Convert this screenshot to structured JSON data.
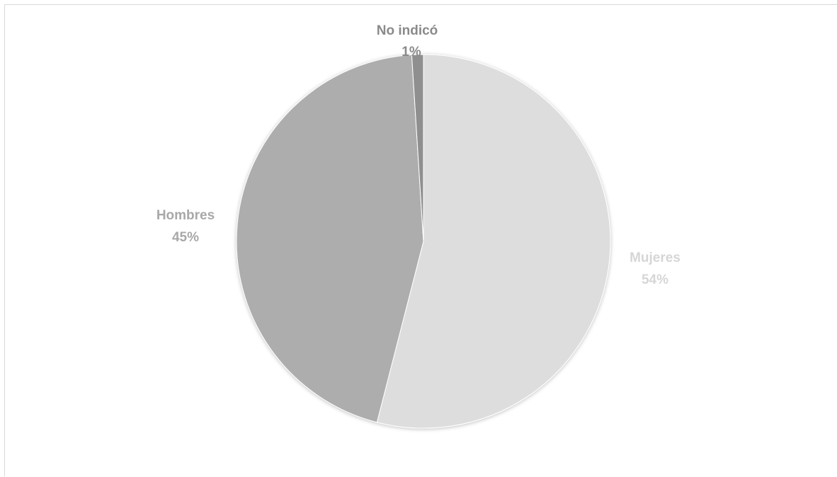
{
  "chart_data": {
    "type": "pie",
    "title": "",
    "slices": [
      {
        "label": "Mujeres",
        "percent_label": "54%",
        "value": 54,
        "color": "#dddddd",
        "label_color": "#d6d6d6"
      },
      {
        "label": "Hombres",
        "percent_label": "45%",
        "value": 45,
        "color": "#adadad",
        "label_color": "#a8a8a8"
      },
      {
        "label": "No indicó",
        "percent_label": "1%",
        "value": 1,
        "color": "#8f8f8f",
        "label_color": "#8a8a8a"
      }
    ],
    "start_angle_deg": 0,
    "direction": "clockwise",
    "legend": "none",
    "data_labels": "category and percentage"
  }
}
